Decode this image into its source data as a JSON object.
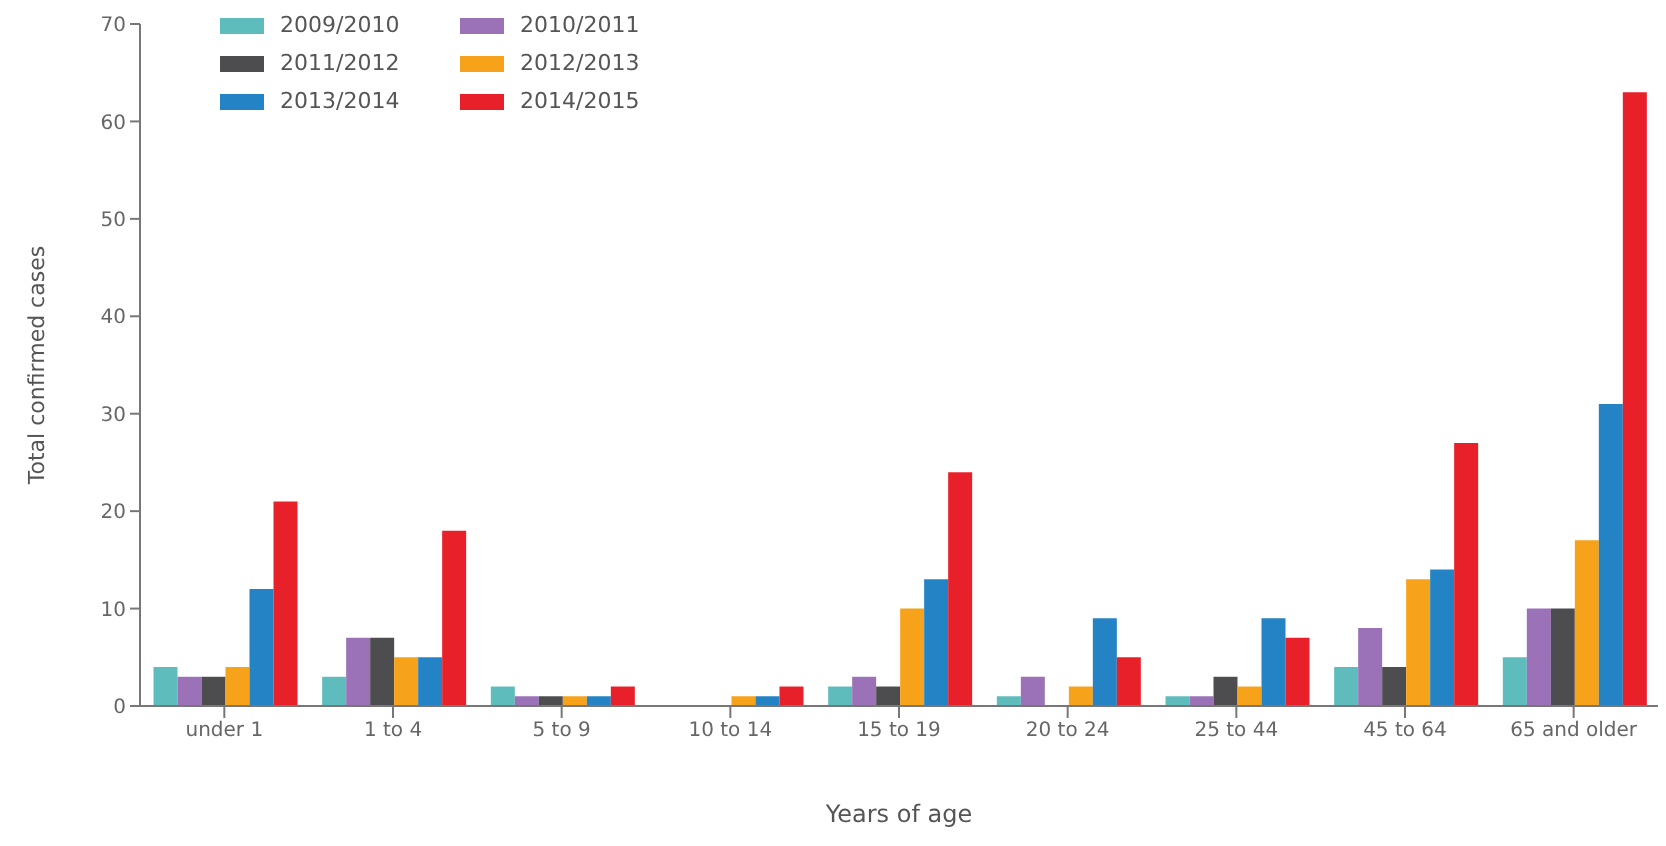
{
  "chart_data": {
    "type": "bar",
    "xlabel": "Years of age",
    "ylabel": "Total confirmed cases",
    "categories": [
      "under 1",
      "1 to 4",
      "5 to 9",
      "10 to 14",
      "15 to 19",
      "20 to 24",
      "25 to 44",
      "45 to 64",
      "65 and older"
    ],
    "series": [
      {
        "name": "2009/2010",
        "color": "#5fbcbc",
        "values": [
          4,
          3,
          2,
          0,
          2,
          1,
          1,
          4,
          5
        ]
      },
      {
        "name": "2010/2011",
        "color": "#9b72b8",
        "values": [
          3,
          7,
          1,
          0,
          3,
          3,
          1,
          8,
          10
        ]
      },
      {
        "name": "2011/2012",
        "color": "#4d4d4f",
        "values": [
          3,
          7,
          1,
          0,
          2,
          0,
          3,
          4,
          10
        ]
      },
      {
        "name": "2012/2013",
        "color": "#f7a21b",
        "values": [
          4,
          5,
          1,
          1,
          10,
          2,
          2,
          13,
          17
        ]
      },
      {
        "name": "2013/2014",
        "color": "#2383c4",
        "values": [
          12,
          5,
          1,
          1,
          13,
          9,
          9,
          14,
          31
        ]
      },
      {
        "name": "2014/2015",
        "color": "#e8202a",
        "values": [
          21,
          18,
          2,
          2,
          24,
          5,
          7,
          27,
          63
        ]
      }
    ],
    "ylim": [
      0,
      70
    ],
    "yticks": [
      0,
      10,
      20,
      30,
      40,
      50,
      60,
      70
    ],
    "grid": false,
    "legend": "top left"
  }
}
